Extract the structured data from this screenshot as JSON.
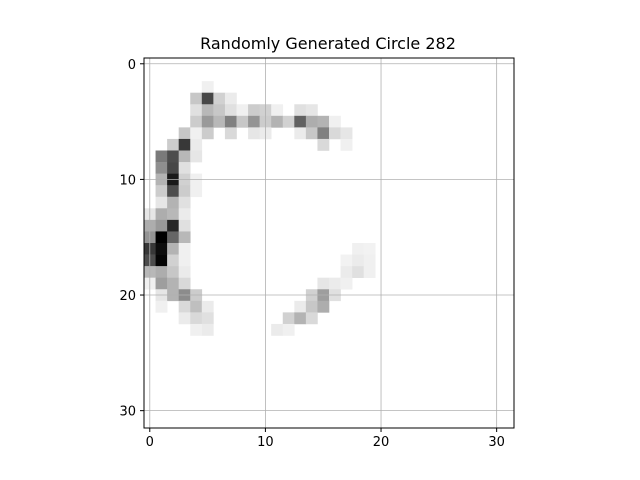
{
  "chart_data": {
    "type": "heatmap",
    "title": "Randomly Generated Circle 282",
    "xlabel": "",
    "ylabel": "",
    "rows": 32,
    "cols": 32,
    "xlim": [
      -0.5,
      31.5
    ],
    "ylim": [
      31.5,
      -0.5
    ],
    "x_ticks": [
      0,
      10,
      20,
      30
    ],
    "y_ticks": [
      0,
      10,
      20,
      30
    ],
    "grid": true,
    "colormap": "gray_r",
    "value_range": [
      0,
      1
    ],
    "cells": [
      [
        2,
        5,
        0.06
      ],
      [
        3,
        4,
        0.22
      ],
      [
        3,
        5,
        0.72
      ],
      [
        3,
        6,
        0.18
      ],
      [
        3,
        7,
        0.08
      ],
      [
        4,
        4,
        0.12
      ],
      [
        4,
        5,
        0.28
      ],
      [
        4,
        6,
        0.22
      ],
      [
        4,
        7,
        0.12
      ],
      [
        4,
        8,
        0.06
      ],
      [
        4,
        9,
        0.2
      ],
      [
        4,
        10,
        0.18
      ],
      [
        4,
        11,
        0.06
      ],
      [
        4,
        13,
        0.12
      ],
      [
        4,
        14,
        0.1
      ],
      [
        5,
        4,
        0.2
      ],
      [
        5,
        5,
        0.4
      ],
      [
        5,
        6,
        0.28
      ],
      [
        5,
        7,
        0.5
      ],
      [
        5,
        8,
        0.22
      ],
      [
        5,
        9,
        0.42
      ],
      [
        5,
        10,
        0.2
      ],
      [
        5,
        11,
        0.3
      ],
      [
        5,
        12,
        0.18
      ],
      [
        5,
        13,
        0.62
      ],
      [
        5,
        14,
        0.32
      ],
      [
        5,
        15,
        0.3
      ],
      [
        5,
        16,
        0.06
      ],
      [
        6,
        3,
        0.22
      ],
      [
        6,
        4,
        0.06
      ],
      [
        6,
        5,
        0.2
      ],
      [
        6,
        7,
        0.15
      ],
      [
        6,
        9,
        0.1
      ],
      [
        6,
        10,
        0.08
      ],
      [
        6,
        13,
        0.08
      ],
      [
        6,
        14,
        0.22
      ],
      [
        6,
        15,
        0.5
      ],
      [
        6,
        16,
        0.15
      ],
      [
        6,
        17,
        0.1
      ],
      [
        7,
        2,
        0.2
      ],
      [
        7,
        3,
        0.78
      ],
      [
        7,
        4,
        0.08
      ],
      [
        7,
        15,
        0.15
      ],
      [
        7,
        17,
        0.06
      ],
      [
        8,
        1,
        0.52
      ],
      [
        8,
        2,
        0.7
      ],
      [
        8,
        3,
        0.28
      ],
      [
        8,
        4,
        0.1
      ],
      [
        9,
        1,
        0.44
      ],
      [
        9,
        2,
        0.72
      ],
      [
        9,
        3,
        0.12
      ],
      [
        10,
        1,
        0.3
      ],
      [
        10,
        2,
        0.9
      ],
      [
        10,
        3,
        0.18
      ],
      [
        10,
        4,
        0.06
      ],
      [
        11,
        1,
        0.2
      ],
      [
        11,
        2,
        0.7
      ],
      [
        11,
        3,
        0.2
      ],
      [
        11,
        4,
        0.06
      ],
      [
        12,
        1,
        0.1
      ],
      [
        12,
        2,
        0.3
      ],
      [
        12,
        3,
        0.12
      ],
      [
        13,
        0,
        0.1
      ],
      [
        13,
        1,
        0.32
      ],
      [
        13,
        2,
        0.28
      ],
      [
        13,
        3,
        0.08
      ],
      [
        14,
        0,
        0.32
      ],
      [
        14,
        1,
        0.4
      ],
      [
        14,
        2,
        0.85
      ],
      [
        14,
        3,
        0.12
      ],
      [
        15,
        0,
        0.42
      ],
      [
        15,
        1,
        1.0
      ],
      [
        15,
        2,
        0.6
      ],
      [
        15,
        3,
        0.28
      ],
      [
        16,
        0,
        0.78
      ],
      [
        16,
        1,
        0.95
      ],
      [
        16,
        2,
        0.3
      ],
      [
        16,
        3,
        0.06
      ],
      [
        16,
        18,
        0.06
      ],
      [
        16,
        19,
        0.05
      ],
      [
        17,
        0,
        0.7
      ],
      [
        17,
        1,
        0.98
      ],
      [
        17,
        2,
        0.18
      ],
      [
        17,
        3,
        0.06
      ],
      [
        17,
        17,
        0.05
      ],
      [
        17,
        18,
        0.08
      ],
      [
        17,
        19,
        0.06
      ],
      [
        18,
        0,
        0.28
      ],
      [
        18,
        1,
        0.32
      ],
      [
        18,
        2,
        0.22
      ],
      [
        18,
        3,
        0.08
      ],
      [
        18,
        17,
        0.08
      ],
      [
        18,
        18,
        0.12
      ],
      [
        18,
        19,
        0.06
      ],
      [
        19,
        0,
        0.06
      ],
      [
        19,
        1,
        0.38
      ],
      [
        19,
        2,
        0.3
      ],
      [
        19,
        3,
        0.15
      ],
      [
        19,
        15,
        0.1
      ],
      [
        19,
        16,
        0.08
      ],
      [
        19,
        17,
        0.06
      ],
      [
        20,
        1,
        0.1
      ],
      [
        20,
        2,
        0.3
      ],
      [
        20,
        3,
        0.45
      ],
      [
        20,
        4,
        0.2
      ],
      [
        20,
        14,
        0.18
      ],
      [
        20,
        15,
        0.38
      ],
      [
        20,
        16,
        0.12
      ],
      [
        21,
        1,
        0.06
      ],
      [
        21,
        3,
        0.15
      ],
      [
        21,
        4,
        0.25
      ],
      [
        21,
        5,
        0.08
      ],
      [
        21,
        13,
        0.08
      ],
      [
        21,
        14,
        0.22
      ],
      [
        21,
        15,
        0.32
      ],
      [
        22,
        3,
        0.08
      ],
      [
        22,
        4,
        0.15
      ],
      [
        22,
        5,
        0.12
      ],
      [
        22,
        12,
        0.18
      ],
      [
        22,
        13,
        0.3
      ],
      [
        22,
        14,
        0.15
      ],
      [
        23,
        4,
        0.06
      ],
      [
        23,
        5,
        0.08
      ],
      [
        23,
        11,
        0.08
      ],
      [
        23,
        12,
        0.06
      ]
    ]
  }
}
